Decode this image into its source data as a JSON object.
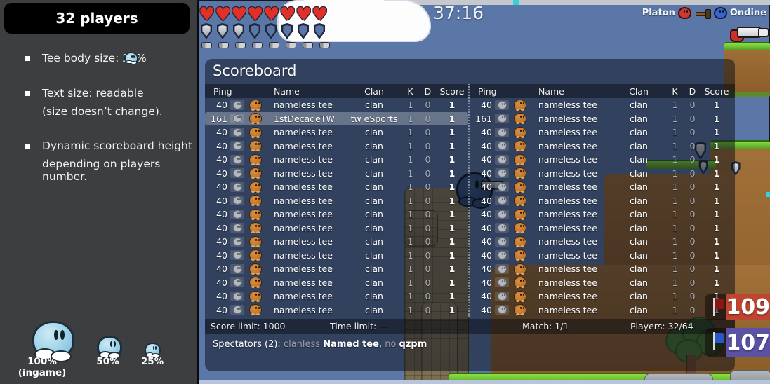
{
  "sidebar": {
    "title": "32 players",
    "bullets": [
      {
        "line1": "Tee body size: 25%"
      },
      {
        "line1": "Text size: readable",
        "line2": "(size doesn’t change)."
      },
      {
        "line1": "Dynamic scoreboard height",
        "line2": "depending on players number."
      }
    ],
    "size_samples": [
      {
        "label": "100% (ingame)"
      },
      {
        "label": "50%"
      },
      {
        "label": "25%"
      }
    ]
  },
  "hud": {
    "timer": "37:16",
    "health": {
      "filled": 8,
      "total": 8,
      "icon": "heart-icon",
      "glyph": "♥"
    },
    "armor": {
      "filled": 3,
      "total": 8,
      "icon": "shield-icon"
    },
    "ammo": {
      "filled": 8,
      "total": 8,
      "icon": "bullet-icon"
    },
    "killfeed": {
      "victim": "Platon",
      "weapon": "hammer",
      "killer": "Ondine"
    }
  },
  "scoreboard": {
    "title": "Scoreboard",
    "columns": [
      "Ping",
      "Name",
      "Clan",
      "K",
      "D",
      "Score"
    ],
    "left_rows": [
      {
        "ping": "40",
        "name": "nameless tee",
        "clan": "clan",
        "k": "1",
        "d": "0",
        "score": "1"
      },
      {
        "ping": "161",
        "name": "1stDecadeTW",
        "clan": "tw eSports",
        "k": "1",
        "d": "0",
        "score": "1",
        "highlighted": true
      },
      {
        "ping": "40",
        "name": "nameless tee",
        "clan": "clan",
        "k": "1",
        "d": "0",
        "score": "1"
      },
      {
        "ping": "40",
        "name": "nameless tee",
        "clan": "clan",
        "k": "1",
        "d": "0",
        "score": "1"
      },
      {
        "ping": "40",
        "name": "nameless tee",
        "clan": "clan",
        "k": "1",
        "d": "0",
        "score": "1"
      },
      {
        "ping": "40",
        "name": "nameless tee",
        "clan": "clan",
        "k": "1",
        "d": "0",
        "score": "1"
      },
      {
        "ping": "40",
        "name": "nameless tee",
        "clan": "clan",
        "k": "1",
        "d": "0",
        "score": "1"
      },
      {
        "ping": "40",
        "name": "nameless tee",
        "clan": "clan",
        "k": "1",
        "d": "0",
        "score": "1"
      },
      {
        "ping": "40",
        "name": "nameless tee",
        "clan": "clan",
        "k": "1",
        "d": "0",
        "score": "1"
      },
      {
        "ping": "40",
        "name": "nameless tee",
        "clan": "clan",
        "k": "1",
        "d": "0",
        "score": "1"
      },
      {
        "ping": "40",
        "name": "nameless tee",
        "clan": "clan",
        "k": "1",
        "d": "0",
        "score": "1"
      },
      {
        "ping": "40",
        "name": "nameless tee",
        "clan": "clan",
        "k": "1",
        "d": "0",
        "score": "1"
      },
      {
        "ping": "40",
        "name": "nameless tee",
        "clan": "clan",
        "k": "1",
        "d": "0",
        "score": "1"
      },
      {
        "ping": "40",
        "name": "nameless tee",
        "clan": "clan",
        "k": "1",
        "d": "0",
        "score": "1"
      },
      {
        "ping": "40",
        "name": "nameless tee",
        "clan": "clan",
        "k": "1",
        "d": "0",
        "score": "1"
      },
      {
        "ping": "40",
        "name": "nameless tee",
        "clan": "clan",
        "k": "1",
        "d": "0",
        "score": "1"
      }
    ],
    "right_rows": [
      {
        "ping": "40",
        "name": "nameless tee",
        "clan": "clan",
        "k": "1",
        "d": "0",
        "score": "1"
      },
      {
        "ping": "161",
        "name": "nameless tee",
        "clan": "clan",
        "k": "1",
        "d": "0",
        "score": "1"
      },
      {
        "ping": "40",
        "name": "nameless tee",
        "clan": "clan",
        "k": "1",
        "d": "0",
        "score": "1"
      },
      {
        "ping": "40",
        "name": "nameless tee",
        "clan": "clan",
        "k": "1",
        "d": "0",
        "score": "1"
      },
      {
        "ping": "40",
        "name": "nameless tee",
        "clan": "clan",
        "k": "1",
        "d": "0",
        "score": "1"
      },
      {
        "ping": "40",
        "name": "nameless tee",
        "clan": "clan",
        "k": "1",
        "d": "0",
        "score": "1"
      },
      {
        "ping": "40",
        "name": "nameless tee",
        "clan": "clan",
        "k": "1",
        "d": "0",
        "score": "1"
      },
      {
        "ping": "40",
        "name": "nameless tee",
        "clan": "clan",
        "k": "1",
        "d": "0",
        "score": "1"
      },
      {
        "ping": "40",
        "name": "nameless tee",
        "clan": "clan",
        "k": "1",
        "d": "0",
        "score": "1"
      },
      {
        "ping": "40",
        "name": "nameless tee",
        "clan": "clan",
        "k": "1",
        "d": "0",
        "score": "1"
      },
      {
        "ping": "40",
        "name": "nameless tee",
        "clan": "clan",
        "k": "1",
        "d": "0",
        "score": "1"
      },
      {
        "ping": "40",
        "name": "nameless tee",
        "clan": "clan",
        "k": "1",
        "d": "0",
        "score": "1"
      },
      {
        "ping": "40",
        "name": "nameless tee",
        "clan": "clan",
        "k": "1",
        "d": "0",
        "score": "1"
      },
      {
        "ping": "40",
        "name": "nameless tee",
        "clan": "clan",
        "k": "1",
        "d": "0",
        "score": "1"
      },
      {
        "ping": "40",
        "name": "nameless tee",
        "clan": "clan",
        "k": "1",
        "d": "0",
        "score": "1"
      },
      {
        "ping": "40",
        "name": "nameless tee",
        "clan": "clan",
        "k": "1",
        "d": "0",
        "score": "1"
      }
    ],
    "footer": {
      "score_limit": "Score limit: 1000",
      "time_limit": "Time limit: ---",
      "match": "Match: 1/1",
      "players": "Players: 32/64"
    },
    "spectators": {
      "prefix": "Spectators (2): ",
      "separator": ", ",
      "entries": [
        {
          "clan": "clanless",
          "name": "Named tee"
        },
        {
          "clan": "no",
          "name": "qzpm"
        }
      ]
    }
  },
  "team_scores": {
    "red": "109",
    "blue": "107"
  },
  "colors": {
    "sky": "#5b77a8",
    "red_team": "#bf4530",
    "blue_team": "#5952a5",
    "sidebar_bg": "#3d3e40",
    "panel_overlay": "rgba(12,16,26,0.52)",
    "highlight_row": "rgba(255,255,255,0.27)"
  }
}
